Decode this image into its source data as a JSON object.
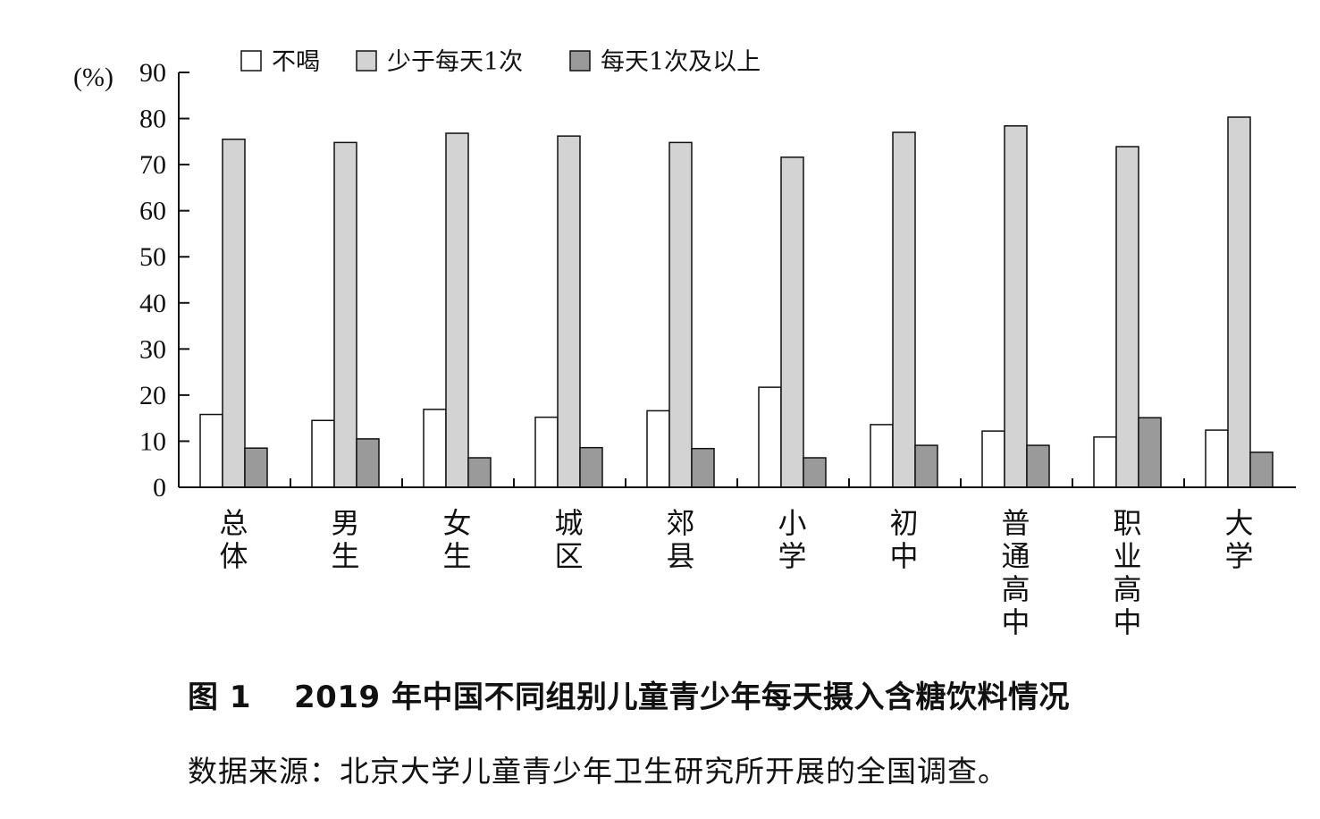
{
  "chart_data": {
    "type": "bar",
    "y_unit": "(%)",
    "ylim": [
      0,
      90
    ],
    "y_ticks": [
      "0",
      "10",
      "20",
      "30",
      "40",
      "50",
      "60",
      "70",
      "80",
      "90"
    ],
    "categories": [
      "总体",
      "男生",
      "女生",
      "城区",
      "郊县",
      "小学",
      "初中",
      "普通高中",
      "职业高中",
      "大学"
    ],
    "series": [
      {
        "name": "不喝",
        "color": "#ffffff",
        "values": [
          15.8,
          14.5,
          16.9,
          15.2,
          16.6,
          21.7,
          13.6,
          12.2,
          10.9,
          12.4
        ]
      },
      {
        "name": "少于每天1次",
        "color": "#d3d3d3",
        "values": [
          75.5,
          74.8,
          76.8,
          76.2,
          74.8,
          71.6,
          77.0,
          78.4,
          73.9,
          80.3
        ]
      },
      {
        "name": "每天1次及以上",
        "color": "#9a9a9a",
        "values": [
          8.5,
          10.5,
          6.4,
          8.6,
          8.4,
          6.4,
          9.1,
          9.1,
          15.1,
          7.6
        ]
      }
    ],
    "legend_position": "top",
    "grid": false
  },
  "caption": {
    "figure_label": "图 1",
    "title": "2019 年中国不同组别儿童青少年每天摄入含糖饮料情况"
  },
  "source": "数据来源：北京大学儿童青少年卫生研究所开展的全国调查。"
}
